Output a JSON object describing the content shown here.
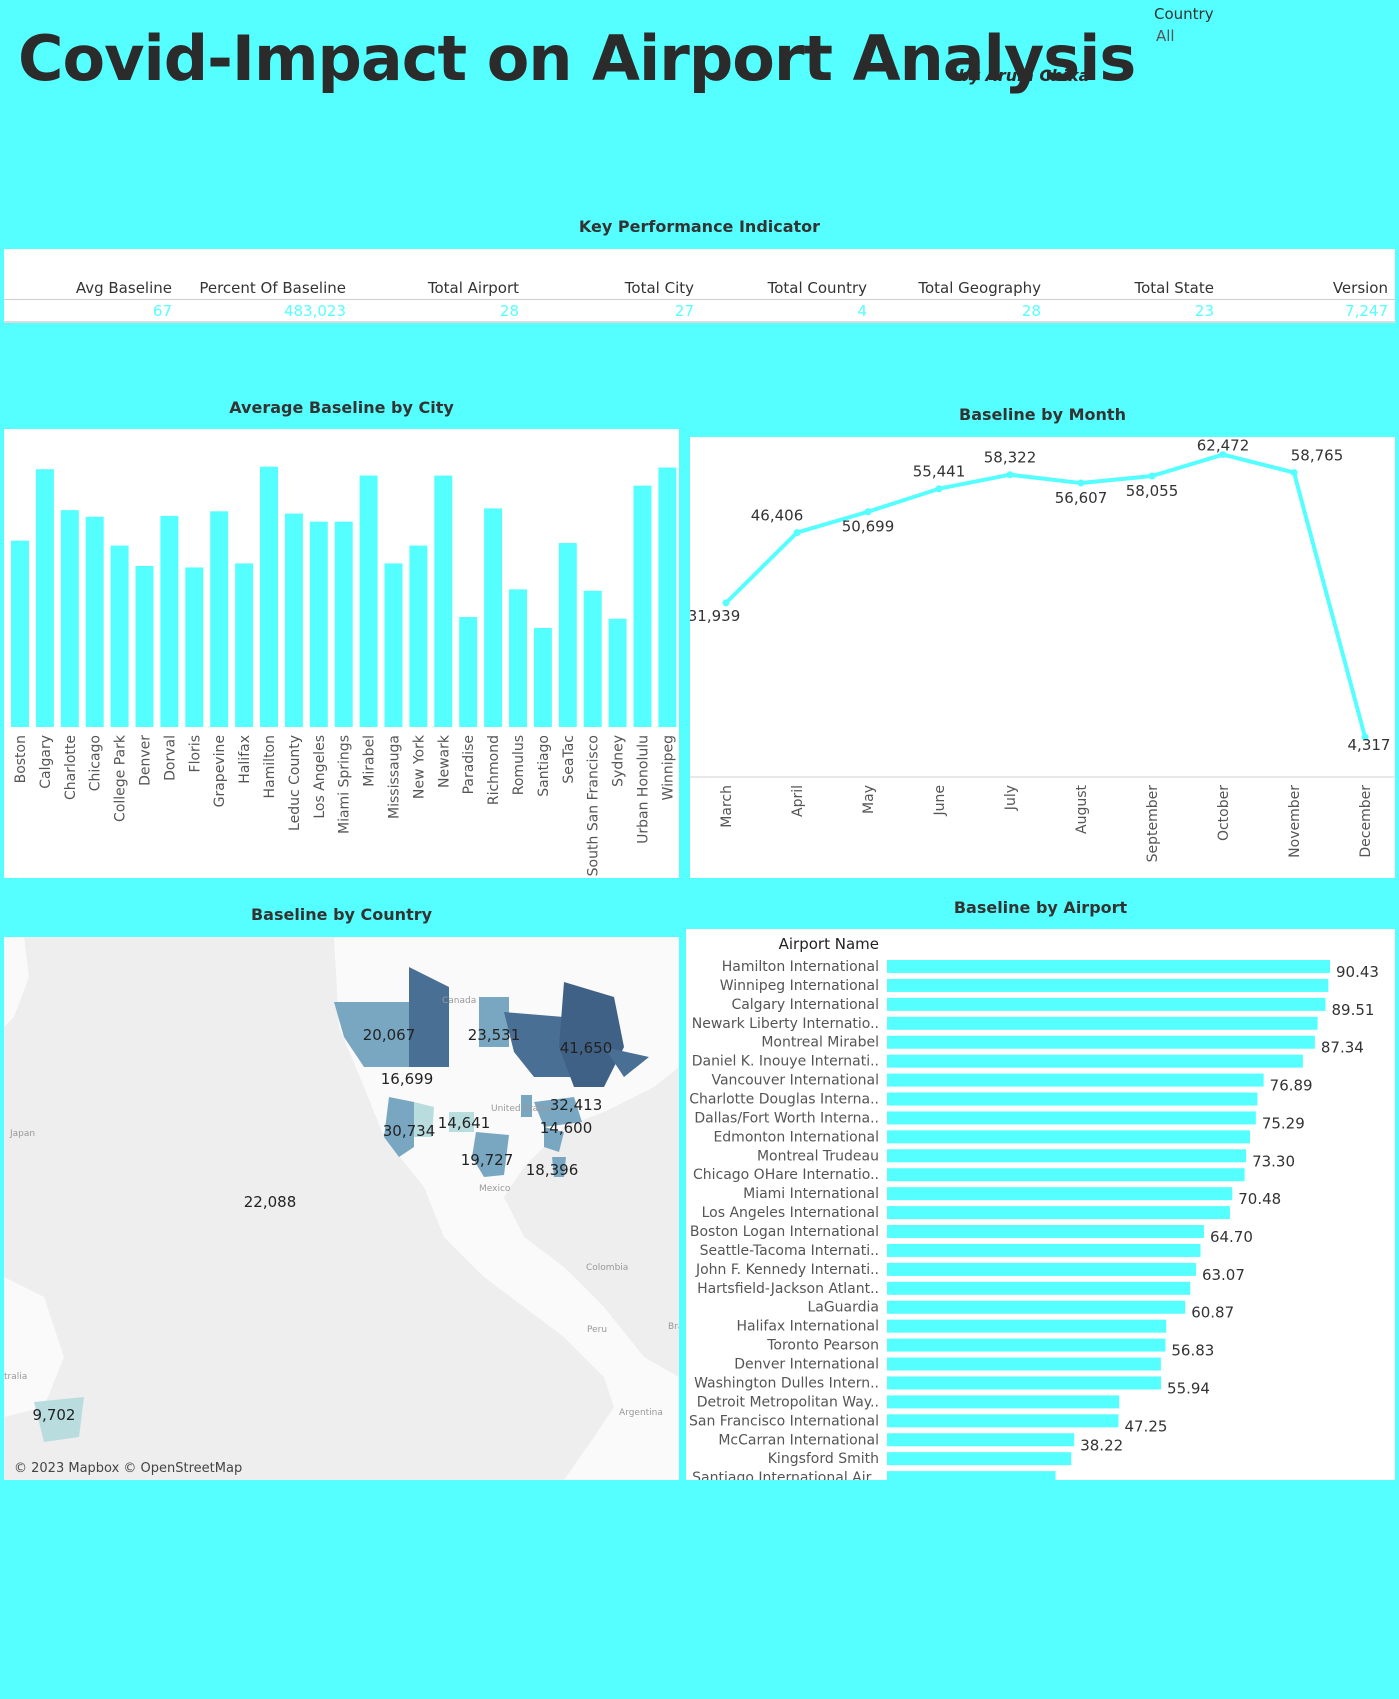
{
  "header": {
    "title": "Covid-Impact on Airport Analysis",
    "byline": "by Arum Chika",
    "filter_label": "Country",
    "filter_value": "All"
  },
  "kpi": {
    "title": "Key Performance Indicator",
    "items": [
      {
        "label": "Avg Baseline",
        "value": "67"
      },
      {
        "label": "Percent Of Baseline",
        "value": "483,023"
      },
      {
        "label": "Total Airport",
        "value": "28"
      },
      {
        "label": "Total City",
        "value": "27"
      },
      {
        "label": "Total Country",
        "value": "4"
      },
      {
        "label": "Total Geography",
        "value": "28"
      },
      {
        "label": "Total State",
        "value": "23"
      },
      {
        "label": "Version",
        "value": "7,247"
      }
    ]
  },
  "colors": {
    "background": "#55FFFF",
    "bar": "#55FFFF",
    "line": "#55FFFF",
    "text": "#333333",
    "map_dark": "#4a6f94",
    "map_mid": "#79a7c2",
    "map_light": "#b9dcdf"
  },
  "chart_data": [
    {
      "type": "bar",
      "title": "Average Baseline by City",
      "categories": [
        "Boston",
        "Calgary",
        "Charlotte",
        "Chicago",
        "College Park",
        "Denver",
        "Dorval",
        "Floris",
        "Grapevine",
        "Halifax",
        "Hamilton",
        "Leduc County",
        "Los Angeles",
        "Miami Springs",
        "Mirabel",
        "Mississauga",
        "New York",
        "Newark",
        "Paradise",
        "Richmond",
        "Romulus",
        "Santiago",
        "SeaTac",
        "South San Francisco",
        "Sydney",
        "Urban Honolulu",
        "Winnipeg"
      ],
      "values": [
        64.7,
        89.5,
        75.3,
        73.0,
        63.0,
        55.9,
        73.3,
        55.4,
        74.9,
        56.8,
        90.4,
        74.1,
        71.3,
        71.3,
        87.3,
        56.8,
        63.0,
        87.3,
        38.2,
        75.9,
        47.8,
        34.4,
        63.9,
        47.3,
        37.6,
        83.8,
        90.1
      ],
      "ylim": [
        0,
        100
      ]
    },
    {
      "type": "line",
      "title": "Baseline by Month",
      "categories": [
        "March",
        "April",
        "May",
        "June",
        "July",
        "August",
        "September",
        "October",
        "November",
        "December"
      ],
      "values": [
        31939,
        46406,
        50699,
        55441,
        58322,
        56607,
        58055,
        62472,
        58765,
        4317
      ],
      "labels": [
        "31,939",
        "46,406",
        "50,699",
        "55,441",
        "58,322",
        "56,607",
        "58,055",
        "62,472",
        "58,765",
        "4,317"
      ]
    },
    {
      "type": "map",
      "title": "Baseline by Country",
      "labels": [
        "20,067",
        "23,531",
        "41,650",
        "16,699",
        "32,413",
        "30,734",
        "14,641",
        "14,600",
        "19,727",
        "18,396",
        "22,088",
        "9,702"
      ],
      "place_names": [
        "Canada",
        "United States",
        "Mexico",
        "Colombia",
        "Peru",
        "Bra",
        "Argentina",
        "Japan",
        "tralia"
      ],
      "attribution": "© 2023 Mapbox © OpenStreetMap"
    },
    {
      "type": "bar",
      "orientation": "horizontal",
      "title": "Baseline by Airport",
      "header": "Airport Name",
      "categories": [
        "Hamilton International",
        "Winnipeg International",
        "Calgary International",
        "Newark Liberty Internatio..",
        "Montreal Mirabel",
        "Daniel K. Inouye Internati..",
        "Vancouver International",
        "Charlotte Douglas Interna..",
        "Dallas/Fort Worth Interna..",
        "Edmonton International",
        "Montreal Trudeau",
        "Chicago OHare Internatio..",
        "Miami International",
        "Los Angeles International",
        "Boston Logan International",
        "Seattle-Tacoma Internati..",
        "John F. Kennedy Internati..",
        "Hartsfield-Jackson Atlant..",
        "LaGuardia",
        "Halifax International",
        "Toronto Pearson",
        "Denver International",
        "Washington Dulles Intern..",
        "Detroit Metropolitan Way..",
        "San Francisco International",
        "McCarran International",
        "Kingsford Smith",
        "Santiago International Air.."
      ],
      "values": [
        90.43,
        90.1,
        89.51,
        87.9,
        87.34,
        84.9,
        76.89,
        75.6,
        75.29,
        74.1,
        73.3,
        73.0,
        70.48,
        70.0,
        64.7,
        64.0,
        63.07,
        61.9,
        60.87,
        57.0,
        56.83,
        55.9,
        55.94,
        47.4,
        47.25,
        38.22,
        37.6,
        34.4
      ],
      "labels": [
        "90.43",
        "",
        "89.51",
        "",
        "87.34",
        "",
        "76.89",
        "",
        "75.29",
        "",
        "73.30",
        "",
        "70.48",
        "",
        "64.70",
        "",
        "63.07",
        "",
        "60.87",
        "",
        "56.83",
        "",
        "55.94",
        "",
        "47.25",
        "38.22",
        "",
        ""
      ]
    }
  ]
}
